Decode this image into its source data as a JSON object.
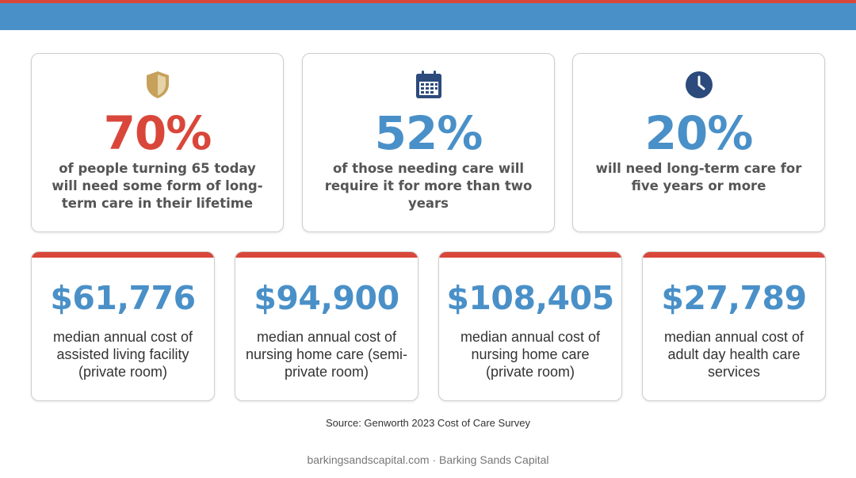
{
  "colors": {
    "header_blue": "#4a90c8",
    "accent_red": "#d9473a",
    "shield_gold": "#c6a15b",
    "navy": "#2c4a7c"
  },
  "stats": [
    {
      "icon": "shield-icon",
      "value": "70%",
      "value_color": "#d9473a",
      "description": "of people turning 65 today will need some form of long-term care in their lifetime"
    },
    {
      "icon": "calendar-icon",
      "value": "52%",
      "value_color": "#4a90c8",
      "description": "of those needing care will require it for more than two years"
    },
    {
      "icon": "clock-icon",
      "value": "20%",
      "value_color": "#4a90c8",
      "description": "will need long-term care for five years or more"
    }
  ],
  "costs": [
    {
      "value": "$61,776",
      "description": "median annual cost of assisted living facility (private room)"
    },
    {
      "value": "$94,900",
      "description": "median annual cost of nursing home care (semi-private room)"
    },
    {
      "value": "$108,405",
      "description": "median annual cost of nursing home care (private room)"
    },
    {
      "value": "$27,789",
      "description": "median annual cost of adult day health care services"
    }
  ],
  "source": "Source: Genworth 2023 Cost of Care Survey",
  "footer": "barkingsandscapital.com · Barking Sands Capital"
}
